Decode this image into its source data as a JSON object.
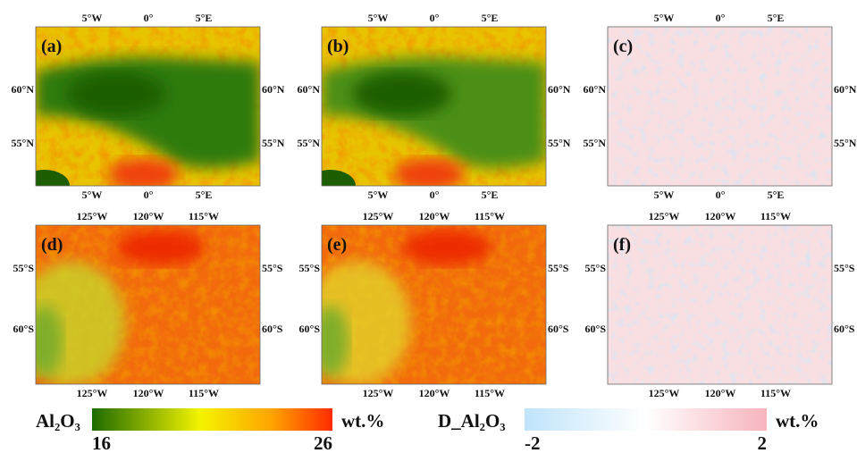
{
  "panels": [
    {
      "label": "(a)",
      "top_ticks": [
        "5°W",
        "0°",
        "5°E"
      ],
      "bottom_ticks": [
        "5°W",
        "0°",
        "5°E"
      ],
      "left_ticks": [
        "60°N",
        "55°N"
      ],
      "right_ticks": [
        "60°N",
        "55°N"
      ]
    },
    {
      "label": "(b)",
      "top_ticks": [
        "5°W",
        "0°",
        "5°E"
      ],
      "bottom_ticks": [
        "5°W",
        "0°",
        "5°E"
      ],
      "left_ticks": [
        "60°N",
        "55°N"
      ],
      "right_ticks": [
        "60°N",
        "55°N"
      ]
    },
    {
      "label": "(c)",
      "top_ticks": [
        "5°W",
        "0°",
        "5°E"
      ],
      "bottom_ticks": [
        "5°W",
        "0°",
        "5°E"
      ],
      "left_ticks": [
        "60°N",
        "55°N"
      ],
      "right_ticks": [
        "60°N",
        "55°N"
      ]
    },
    {
      "label": "(d)",
      "top_ticks": [
        "125°W",
        "120°W",
        "115°W"
      ],
      "bottom_ticks": [
        "125°W",
        "120°W",
        "115°W"
      ],
      "left_ticks": [
        "55°S",
        "60°S"
      ],
      "right_ticks": [
        "55°S",
        "60°S"
      ]
    },
    {
      "label": "(e)",
      "top_ticks": [
        "125°W",
        "120°W",
        "115°W"
      ],
      "bottom_ticks": [
        "125°W",
        "120°W",
        "115°W"
      ],
      "left_ticks": [
        "55°S",
        "60°S"
      ],
      "right_ticks": [
        "55°S",
        "60°S"
      ]
    },
    {
      "label": "(f)",
      "top_ticks": [
        "125°W",
        "120°W",
        "115°W"
      ],
      "bottom_ticks": [
        "125°W",
        "120°W",
        "115°W"
      ],
      "left_ticks": [
        "55°S",
        "60°S"
      ],
      "right_ticks": [
        "55°S",
        "60°S"
      ]
    }
  ],
  "colorbars": [
    {
      "label": "Al₂O₃",
      "unit": "wt.%",
      "min": 16,
      "max": 26
    },
    {
      "label": "D_Al₂O₃",
      "unit": "wt.%",
      "min": -2,
      "max": 2
    }
  ]
}
